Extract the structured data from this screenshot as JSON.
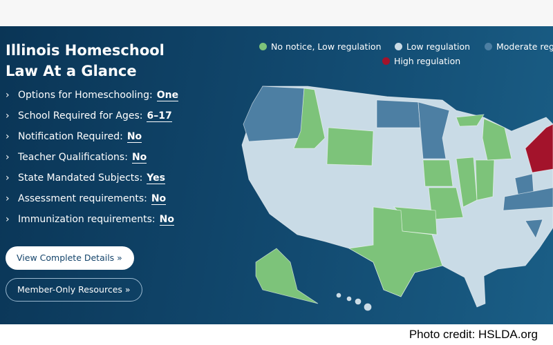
{
  "panel": {
    "title_line1": "Illinois Homeschool",
    "title_line2": "Law At a Glance",
    "items": [
      {
        "label": "Options for Homeschooling:",
        "value": "One"
      },
      {
        "label": "School Required for Ages:",
        "value": "6–17"
      },
      {
        "label": "Notification Required:",
        "value": "No"
      },
      {
        "label": "Teacher Qualifications:",
        "value": "No"
      },
      {
        "label": "State Mandated Subjects:",
        "value": "Yes"
      },
      {
        "label": "Assessment requirements:",
        "value": "No"
      },
      {
        "label": "Immunization requirements:",
        "value": "No"
      }
    ],
    "buttons": [
      "View Complete Details »",
      "Member-Only Resources »"
    ]
  },
  "legend": [
    {
      "label": "No notice, Low regulation",
      "color": "#7dc37a"
    },
    {
      "label": "Low regulation",
      "color": "#c9dbe6"
    },
    {
      "label": "Moderate regulation",
      "color": "#4d7fa3"
    },
    {
      "label": "High regulation",
      "color": "#a3132b"
    }
  ],
  "credit": "Photo credit: HSLDA.org"
}
